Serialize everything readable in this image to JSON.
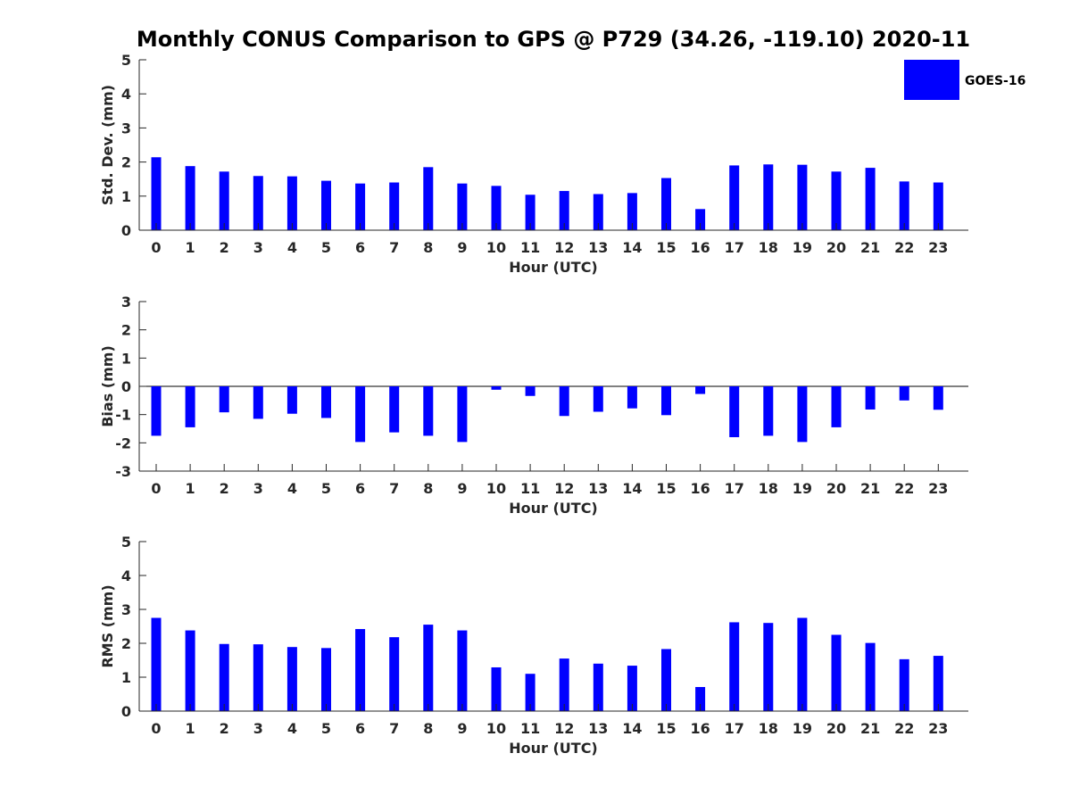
{
  "title": "Monthly CONUS Comparison to GPS @ P729 (34.26, -119.10) 2020-11",
  "legend": {
    "label": "GOES-16",
    "color": "#0000ff",
    "placement": "top-right"
  },
  "chart_data": [
    {
      "type": "bar",
      "title": "Monthly CONUS Comparison to GPS @ P729 (34.26, -119.10) 2020-11",
      "xlabel": "Hour (UTC)",
      "ylabel": "Std. Dev. (mm)",
      "ylim": [
        0,
        5
      ],
      "yticks": [
        "0",
        "1",
        "2",
        "3",
        "4",
        "5"
      ],
      "categories": [
        "0",
        "1",
        "2",
        "3",
        "4",
        "5",
        "6",
        "7",
        "8",
        "9",
        "10",
        "11",
        "12",
        "13",
        "14",
        "15",
        "16",
        "17",
        "18",
        "19",
        "20",
        "21",
        "22",
        "23"
      ],
      "series": [
        {
          "name": "GOES-16",
          "color": "#0000ff",
          "values": [
            2.14,
            1.88,
            1.72,
            1.59,
            1.58,
            1.45,
            1.37,
            1.4,
            1.85,
            1.37,
            1.3,
            1.04,
            1.15,
            1.06,
            1.09,
            1.53,
            0.62,
            1.9,
            1.93,
            1.92,
            1.72,
            1.83,
            1.43,
            1.4
          ]
        }
      ]
    },
    {
      "type": "bar",
      "xlabel": "Hour (UTC)",
      "ylabel": "Bias (mm)",
      "ylim": [
        -3,
        3
      ],
      "yticks": [
        "-3",
        "-2",
        "-1",
        "0",
        "1",
        "2",
        "3"
      ],
      "categories": [
        "0",
        "1",
        "2",
        "3",
        "4",
        "5",
        "6",
        "7",
        "8",
        "9",
        "10",
        "11",
        "12",
        "13",
        "14",
        "15",
        "16",
        "17",
        "18",
        "19",
        "20",
        "21",
        "22",
        "23"
      ],
      "series": [
        {
          "name": "GOES-16",
          "color": "#0000ff",
          "values": [
            -1.75,
            -1.45,
            -0.92,
            -1.15,
            -0.97,
            -1.12,
            -1.97,
            -1.63,
            -1.75,
            -1.97,
            -0.12,
            -0.34,
            -1.05,
            -0.9,
            -0.78,
            -1.02,
            -0.27,
            -1.8,
            -1.75,
            -1.97,
            -1.45,
            -0.82,
            -0.5,
            -0.83
          ]
        }
      ]
    },
    {
      "type": "bar",
      "xlabel": "Hour (UTC)",
      "ylabel": "RMS (mm)",
      "ylim": [
        0,
        5
      ],
      "yticks": [
        "0",
        "1",
        "2",
        "3",
        "4",
        "5"
      ],
      "categories": [
        "0",
        "1",
        "2",
        "3",
        "4",
        "5",
        "6",
        "7",
        "8",
        "9",
        "10",
        "11",
        "12",
        "13",
        "14",
        "15",
        "16",
        "17",
        "18",
        "19",
        "20",
        "21",
        "22",
        "23"
      ],
      "series": [
        {
          "name": "GOES-16",
          "color": "#0000ff",
          "values": [
            2.75,
            2.38,
            1.98,
            1.97,
            1.89,
            1.86,
            2.42,
            2.18,
            2.55,
            2.38,
            1.29,
            1.1,
            1.55,
            1.4,
            1.34,
            1.83,
            0.71,
            2.62,
            2.6,
            2.75,
            2.25,
            2.01,
            1.53,
            1.63
          ]
        }
      ]
    }
  ]
}
